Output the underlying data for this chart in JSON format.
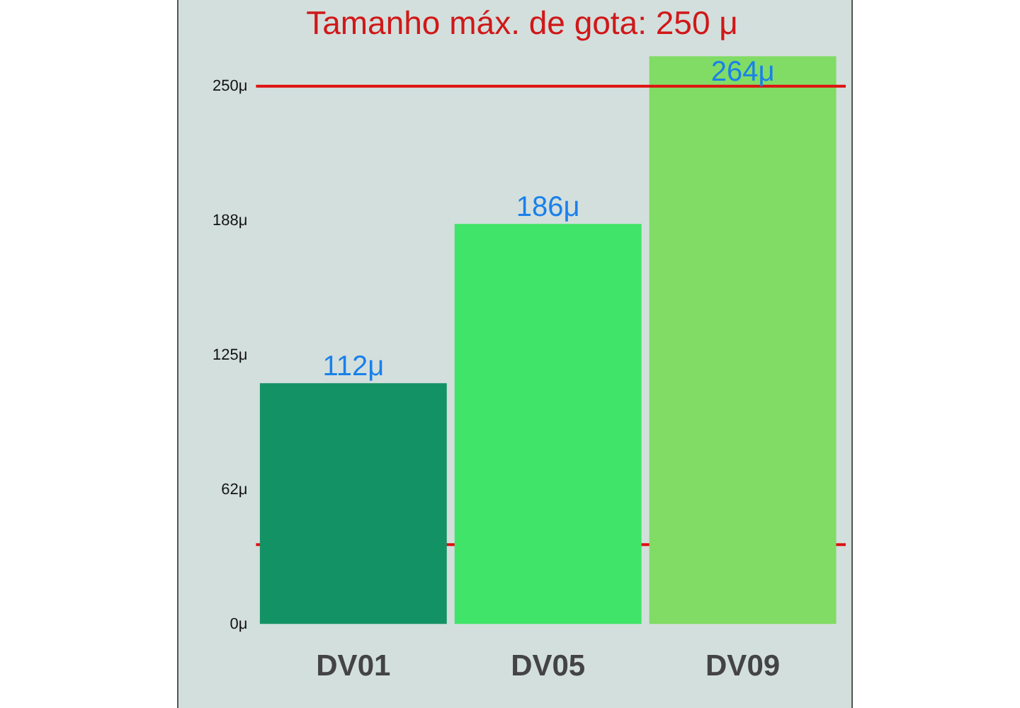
{
  "chart_data": {
    "type": "bar",
    "title": "Tamanho máx. de gota: 250 μ",
    "categories": [
      "DV01",
      "DV05",
      "DV09"
    ],
    "values": [
      112,
      186,
      264
    ],
    "colors": [
      "#139266",
      "#40e468",
      "#80dc64"
    ],
    "value_labels": [
      "112μ",
      "186μ",
      "264μ"
    ],
    "ylim": [
      0,
      264
    ],
    "yticks": [
      {
        "value": 0,
        "label": "0μ"
      },
      {
        "value": 62.5,
        "label": "62μ"
      },
      {
        "value": 125,
        "label": "125μ"
      },
      {
        "value": 187.5,
        "label": "188μ"
      },
      {
        "value": 250,
        "label": "250μ"
      }
    ],
    "ref_lines": [
      {
        "axis": "y",
        "value": 250,
        "color": "#e01010"
      },
      {
        "axis": "y",
        "value": 37,
        "color": "#e01010"
      }
    ],
    "grid": false,
    "legend": false
  }
}
